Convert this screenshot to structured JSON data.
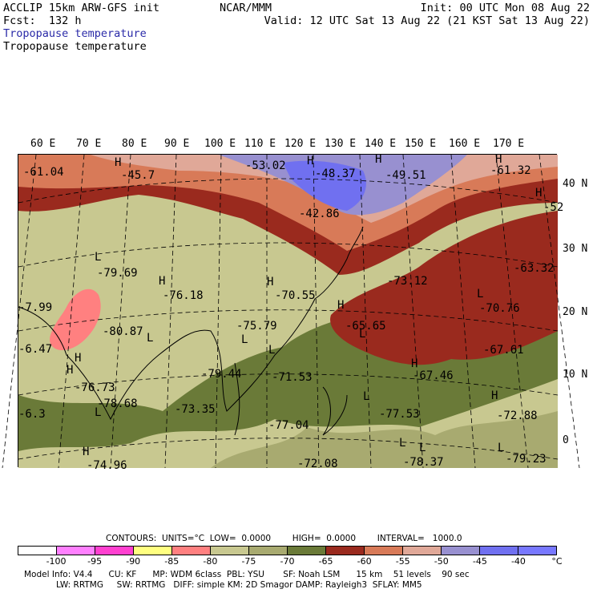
{
  "header": {
    "model": "ACCLIP 15km ARW-GFS init",
    "org": "NCAR/MMM",
    "init": "Init: 00 UTC Mon 08 Aug 22",
    "fcst": "Fcst:  132 h",
    "valid": "Valid: 12 UTC Sat 13 Aug 22 (21 KST Sat 13 Aug 22)",
    "field_colored": "Tropopause temperature",
    "field_contour": "Tropopause temperature"
  },
  "lon_labels": [
    "60 E",
    "70 E",
    "80 E",
    "90 E",
    "100 E",
    "110 E",
    "120 E",
    "130 E",
    "140 E",
    "150 E",
    "160 E",
    "170 E"
  ],
  "lat_labels": [
    "40 N",
    "30 N",
    "20 N",
    "10 N",
    "0"
  ],
  "map_labels": [
    {
      "t": "-61.04"
    },
    {
      "t": "H"
    },
    {
      "t": "-45.7"
    },
    {
      "t": "-53.02"
    },
    {
      "t": "H"
    },
    {
      "t": "-48.37"
    },
    {
      "t": "H"
    },
    {
      "t": "-49.51"
    },
    {
      "t": "H"
    },
    {
      "t": "-61.32"
    },
    {
      "t": "H"
    },
    {
      "t": "-52"
    },
    {
      "t": "-42.86"
    },
    {
      "t": "L"
    },
    {
      "t": "-79.69"
    },
    {
      "t": "H"
    },
    {
      "t": "-76.18"
    },
    {
      "t": "H"
    },
    {
      "t": "-70.55"
    },
    {
      "t": "-73.12"
    },
    {
      "t": "-63.32"
    },
    {
      "t": "L"
    },
    {
      "t": "-70.76"
    },
    {
      "t": "H"
    },
    {
      "t": "-65.65"
    },
    {
      "t": "-67.61"
    },
    {
      "t": "L"
    },
    {
      "t": "-75.79"
    },
    {
      "t": "L"
    },
    {
      "t": "-80.87"
    },
    {
      "t": "-79.44"
    },
    {
      "t": "L"
    },
    {
      "t": "-71.53"
    },
    {
      "t": "H"
    },
    {
      "t": "-67.46"
    },
    {
      "t": "H"
    },
    {
      "t": "-76.73"
    },
    {
      "t": "L"
    },
    {
      "t": "-78.68"
    },
    {
      "t": "-73.35"
    },
    {
      "t": "-77.04"
    },
    {
      "t": "L"
    },
    {
      "t": "-77.53"
    },
    {
      "t": "H"
    },
    {
      "t": "-72.88"
    },
    {
      "t": "H"
    },
    {
      "t": "-74.96"
    },
    {
      "t": "-72.08"
    },
    {
      "t": "L"
    },
    {
      "t": "-78.37"
    },
    {
      "t": "L"
    },
    {
      "t": "-79.23"
    },
    {
      "t": "H"
    },
    {
      "t": "-6.3"
    },
    {
      "t": "-6.47"
    },
    {
      "t": "-7.99"
    },
    {
      "t": "L"
    },
    {
      "t": "L"
    }
  ],
  "contour_line": "CONTOURS:  UNITS=°C  LOW=  0.0000        HIGH=  0.0000        INTERVAL=   1000.0",
  "colorbar": {
    "colors": [
      "#ffffff",
      "#ff80ff",
      "#ff40d0",
      "#ffff80",
      "#ff8080",
      "#c8c890",
      "#a8aa70",
      "#6a7a38",
      "#9a2a1e",
      "#d87a58",
      "#e0a898",
      "#9890d0",
      "#7070f0",
      "#7878ff"
    ],
    "labels": [
      "-100",
      "-95",
      "-90",
      "-85",
      "-80",
      "-75",
      "-70",
      "-65",
      "-60",
      "-55",
      "-50",
      "-45",
      "-40",
      "°C"
    ]
  },
  "footer": {
    "line1": "Model Info: V4.4      CU: KF      MP: WDM 6class  PBL: YSU       SF: Noah LSM      15 km    51 levels    90 sec",
    "line2": "LW: RRTMG     SW: RRTMG   DIFF: simple KM: 2D Smagor DAMP: Rayleigh3  SFLAY: MM5"
  }
}
